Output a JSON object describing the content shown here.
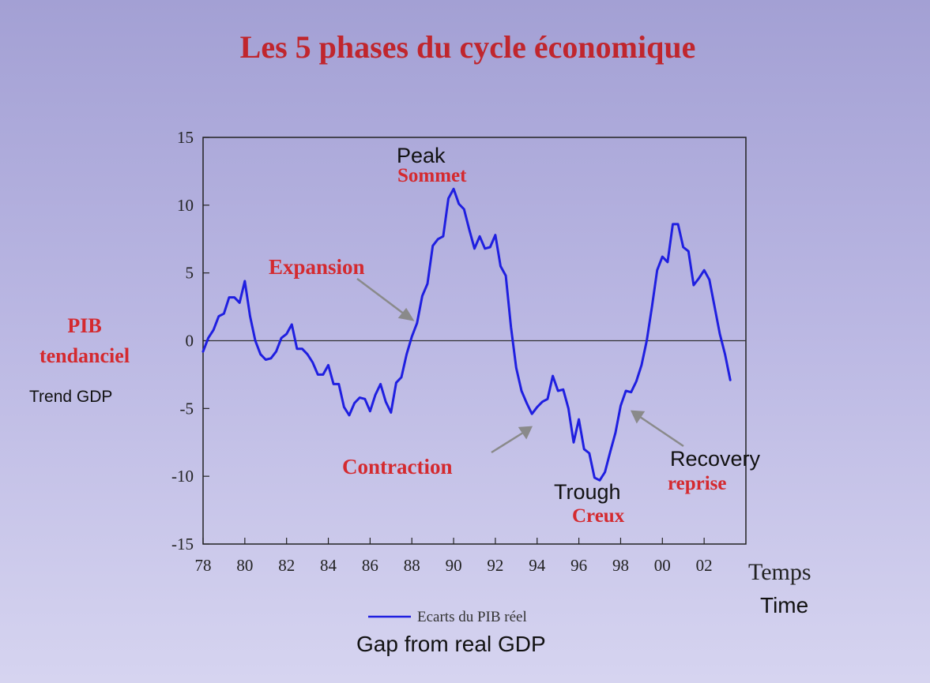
{
  "chart_data": {
    "type": "line",
    "title": "Les 5 phases du cycle économique",
    "xlabel_fr": "Temps",
    "xlabel_en": "Time",
    "ylabel_fr_line1": "PIB",
    "ylabel_fr_line2": "tendanciel",
    "ylabel_en": "Trend GDP",
    "xlim": [
      1978,
      2004
    ],
    "ylim": [
      -15,
      15
    ],
    "x_ticks": [
      "78",
      "80",
      "82",
      "84",
      "86",
      "88",
      "90",
      "92",
      "94",
      "96",
      "98",
      "00",
      "02"
    ],
    "x_tick_values": [
      1978,
      1980,
      1982,
      1984,
      1986,
      1988,
      1990,
      1992,
      1994,
      1996,
      1998,
      2000,
      2002
    ],
    "y_ticks": [
      "15",
      "10",
      "5",
      "0",
      "-5",
      "-10",
      "-15"
    ],
    "y_tick_values": [
      15,
      10,
      5,
      0,
      -5,
      -10,
      -15
    ],
    "legend": {
      "series_label": "Ecarts du PIB réel",
      "series_label_en": "Gap from real GDP",
      "color": "#1f1fe0"
    },
    "series": [
      {
        "name": "Ecarts du PIB réel",
        "color": "#1f1fe0",
        "x": [
          1978.0,
          1978.25,
          1978.5,
          1978.75,
          1979.0,
          1979.25,
          1979.5,
          1979.75,
          1980.0,
          1980.25,
          1980.5,
          1980.75,
          1981.0,
          1981.25,
          1981.5,
          1981.75,
          1982.0,
          1982.25,
          1982.5,
          1982.75,
          1983.0,
          1983.25,
          1983.5,
          1983.75,
          1984.0,
          1984.25,
          1984.5,
          1984.75,
          1985.0,
          1985.25,
          1985.5,
          1985.75,
          1986.0,
          1986.25,
          1986.5,
          1986.75,
          1987.0,
          1987.25,
          1987.5,
          1987.75,
          1988.0,
          1988.25,
          1988.5,
          1988.75,
          1989.0,
          1989.25,
          1989.5,
          1989.75,
          1990.0,
          1990.25,
          1990.5,
          1990.75,
          1991.0,
          1991.25,
          1991.5,
          1991.75,
          1992.0,
          1992.25,
          1992.5,
          1992.75,
          1993.0,
          1993.25,
          1993.5,
          1993.75,
          1994.0,
          1994.25,
          1994.5,
          1994.75,
          1995.0,
          1995.25,
          1995.5,
          1995.75,
          1996.0,
          1996.25,
          1996.5,
          1996.75,
          1997.0,
          1997.25,
          1997.5,
          1997.75,
          1998.0,
          1998.25,
          1998.5,
          1998.75,
          1999.0,
          1999.25,
          1999.5,
          1999.75,
          2000.0,
          2000.25,
          2000.5,
          2000.75,
          2001.0,
          2001.25,
          2001.5,
          2001.75,
          2002.0,
          2002.25,
          2002.5,
          2002.75,
          2003.0,
          2003.25
        ],
        "values": [
          -0.8,
          0.2,
          0.8,
          1.8,
          2.0,
          3.2,
          3.2,
          2.8,
          4.4,
          1.8,
          0.0,
          -1.0,
          -1.4,
          -1.3,
          -0.8,
          0.2,
          0.5,
          1.2,
          -0.6,
          -0.6,
          -1.0,
          -1.6,
          -2.5,
          -2.5,
          -1.8,
          -3.2,
          -3.2,
          -4.9,
          -5.5,
          -4.6,
          -4.2,
          -4.3,
          -5.2,
          -4.0,
          -3.2,
          -4.5,
          -5.3,
          -3.1,
          -2.7,
          -1.0,
          0.3,
          1.3,
          3.3,
          4.2,
          7.0,
          7.5,
          7.7,
          10.5,
          11.2,
          10.1,
          9.7,
          8.2,
          6.8,
          7.7,
          6.8,
          6.9,
          7.8,
          5.5,
          4.8,
          1.0,
          -2.0,
          -3.7,
          -4.6,
          -5.4,
          -4.9,
          -4.5,
          -4.3,
          -2.6,
          -3.7,
          -3.6,
          -5.0,
          -7.5,
          -5.8,
          -8.0,
          -8.3,
          -10.1,
          -10.3,
          -9.7,
          -8.2,
          -6.8,
          -4.8,
          -3.7,
          -3.8,
          -3.0,
          -1.8,
          0.0,
          2.5,
          5.2,
          6.2,
          5.8,
          8.6,
          8.6,
          6.9,
          6.6,
          4.1,
          4.6,
          5.2,
          4.5,
          2.5,
          0.5,
          -1.0,
          -2.9
        ]
      }
    ],
    "annotations": {
      "peak_en": "Peak",
      "peak_fr": "Sommet",
      "expansion": "Expansion",
      "contraction": "Contraction",
      "trough_en": "Trough",
      "trough_fr": "Creux",
      "recovery_en": "Recovery",
      "recovery_fr": "reprise"
    },
    "zero_line": true,
    "grid": false,
    "legend_placement": "bottom-center"
  }
}
